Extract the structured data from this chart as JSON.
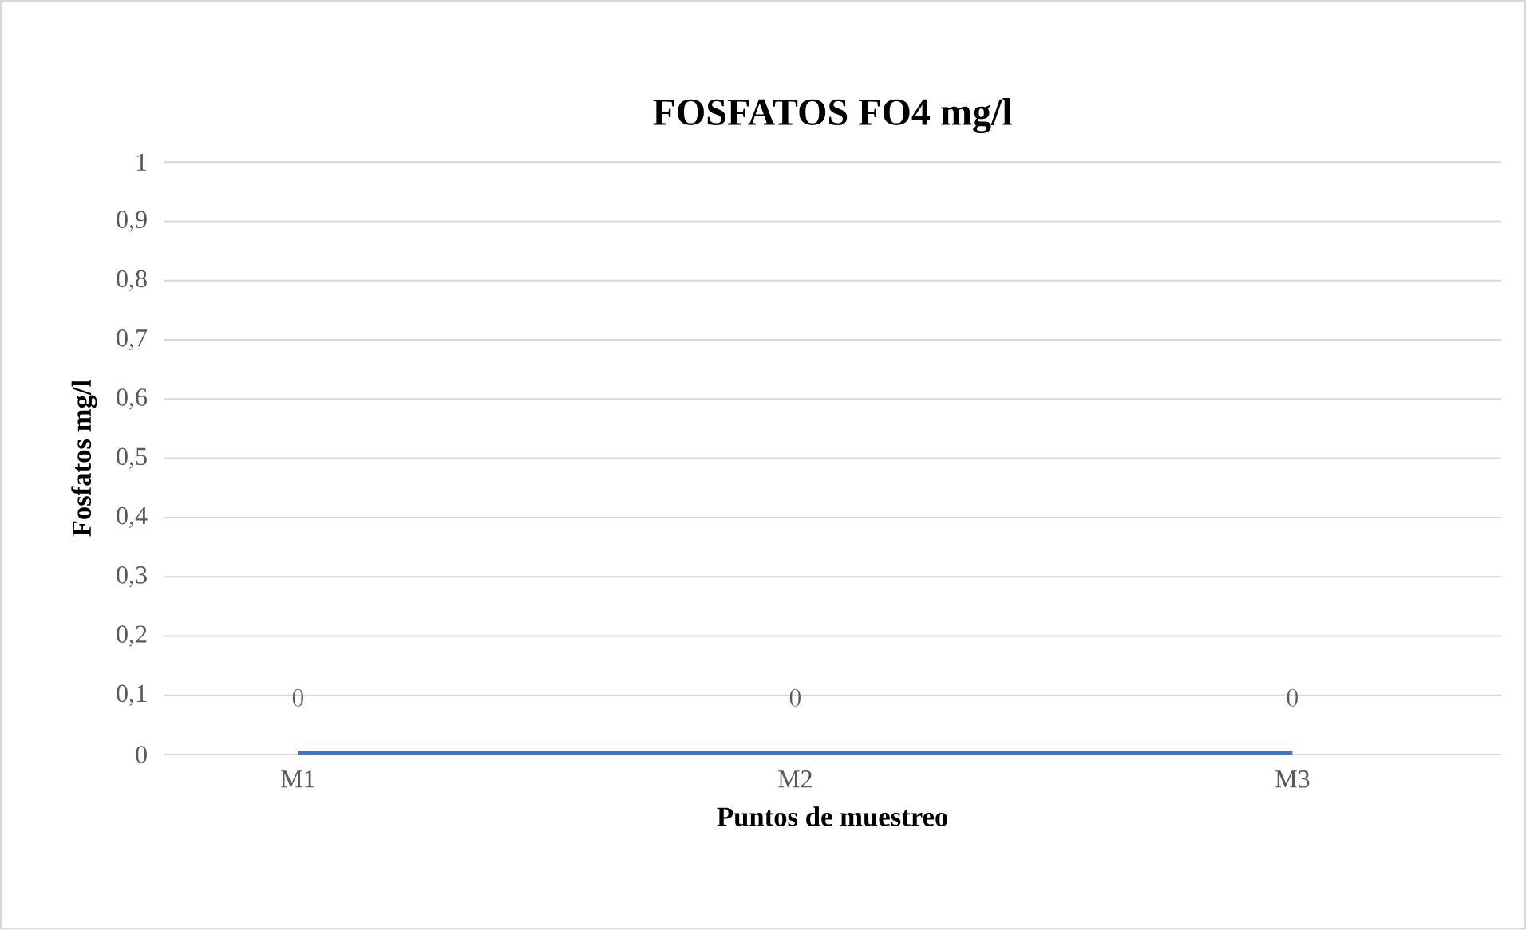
{
  "chart_data": {
    "type": "line",
    "title": "FOSFATOS FO4 mg/l",
    "xlabel": "Puntos de muestreo",
    "ylabel": "Fosfatos mg/l",
    "categories": [
      "M1",
      "M2",
      "M3"
    ],
    "values": [
      0,
      0,
      0
    ],
    "color": "#4472c4",
    "ylim": [
      0,
      1
    ],
    "yticks": [
      0,
      {
        "value": 0.1,
        "label": "0,1"
      },
      {
        "value": 0.2,
        "label": "0,2"
      },
      {
        "value": 0.3,
        "label": "0,3"
      },
      {
        "value": 0.4,
        "label": "0,4"
      },
      {
        "value": 0.5,
        "label": "0,5"
      },
      {
        "value": 0.6,
        "label": "0,6"
      },
      {
        "value": 0.7,
        "label": "0,7"
      },
      {
        "value": 0.8,
        "label": "0,8"
      },
      {
        "value": 0.9,
        "label": "0,9"
      },
      1
    ],
    "grid": "y",
    "data_labels": true
  }
}
